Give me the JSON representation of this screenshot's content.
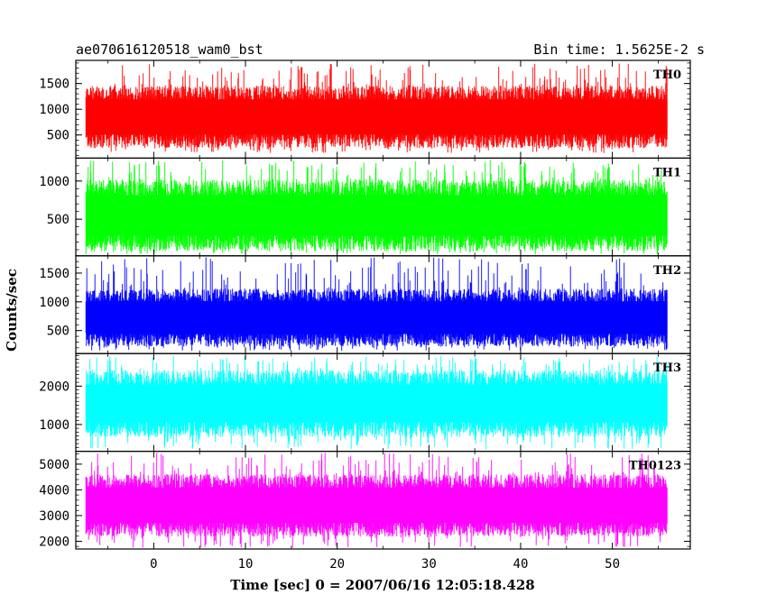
{
  "header": {
    "left": "ae070616120518_wam0_bst",
    "right": "Bin time: 1.5625E-2 s"
  },
  "chart_data": {
    "type": "line",
    "title": "ae070616120518_wam0_bst",
    "xlabel": "Time [sec] 0 = 2007/06/16 12:05:18.428",
    "ylabel": "Counts/sec",
    "xlim": [
      -8.5,
      58.5
    ],
    "x_data_range": [
      -7.4,
      56.0
    ],
    "x_ticks": [
      0,
      10,
      20,
      30,
      40,
      50
    ],
    "x_tick_labels": [
      "0",
      "10",
      "20",
      "30",
      "40",
      "50"
    ],
    "grid": false,
    "panels": [
      {
        "label": "TH0",
        "color": "#ff0000",
        "ylim": [
          50,
          1950
        ],
        "y_ticks": [
          500,
          1000,
          1500
        ],
        "y_tick_labels": [
          "500",
          "1000",
          "1500"
        ],
        "envelope": {
          "typical_low": 400,
          "typical_high": 1300,
          "min": 150,
          "max": 1900
        }
      },
      {
        "label": "TH1",
        "color": "#00ff00",
        "ylim": [
          20,
          1300
        ],
        "y_ticks": [
          500,
          1000
        ],
        "y_tick_labels": [
          "500",
          "1000"
        ],
        "envelope": {
          "typical_low": 200,
          "typical_high": 900,
          "min": 40,
          "max": 1280
        }
      },
      {
        "label": "TH2",
        "color": "#0000ff",
        "ylim": [
          100,
          1800
        ],
        "y_ticks": [
          500,
          1000,
          1500
        ],
        "y_tick_labels": [
          "500",
          "1000",
          "1500"
        ],
        "envelope": {
          "typical_low": 350,
          "typical_high": 1100,
          "min": 150,
          "max": 1780
        }
      },
      {
        "label": "TH3",
        "color": "#00ffff",
        "ylim": [
          300,
          2850
        ],
        "y_ticks": [
          1000,
          2000
        ],
        "y_tick_labels": [
          "1000",
          "2000"
        ],
        "envelope": {
          "typical_low": 900,
          "typical_high": 2200,
          "min": 350,
          "max": 2800
        }
      },
      {
        "label": "TH0123",
        "color": "#ff00ff",
        "ylim": [
          1700,
          5500
        ],
        "y_ticks": [
          2000,
          3000,
          4000,
          5000
        ],
        "y_tick_labels": [
          "2000",
          "3000",
          "4000",
          "5000"
        ],
        "envelope": {
          "typical_low": 2500,
          "typical_high": 4300,
          "min": 1750,
          "max": 5450
        }
      }
    ]
  }
}
